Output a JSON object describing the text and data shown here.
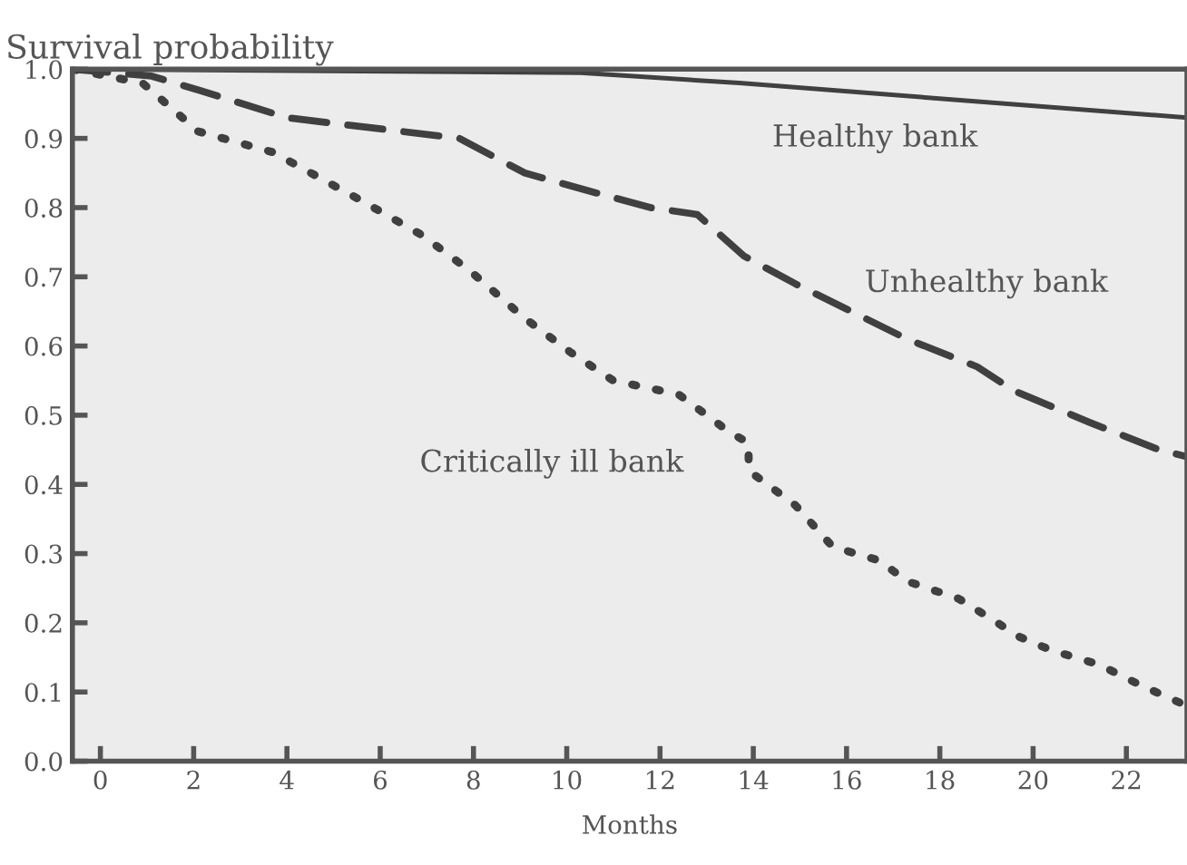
{
  "chart_data": {
    "type": "line",
    "xlabel": "Months",
    "ylabel": "Survival probability",
    "xlim": [
      -0.6,
      23.3
    ],
    "ylim": [
      0,
      1.0
    ],
    "xticks": [
      0,
      2,
      4,
      6,
      8,
      10,
      12,
      14,
      16,
      18,
      20,
      22
    ],
    "yticks": [
      {
        "value": 0,
        "label": "0.0"
      },
      {
        "value": 0.1,
        "label": "0.1"
      },
      {
        "value": 0.2,
        "label": "0.2"
      },
      {
        "value": 0.3,
        "label": "0.3"
      },
      {
        "value": 0.4,
        "label": "0.4"
      },
      {
        "value": 0.5,
        "label": "0.5"
      },
      {
        "value": 0.6,
        "label": "0.6"
      },
      {
        "value": 0.7,
        "label": "0.7"
      },
      {
        "value": 0.8,
        "label": "0.8"
      },
      {
        "value": 0.9,
        "label": "0.9"
      },
      {
        "value": 1.0,
        "label": "1.0"
      }
    ],
    "grid": false,
    "series": [
      {
        "name": "Healthy bank",
        "color": "#404040",
        "line_style": "solid",
        "x": [
          -0.6,
          10.3,
          13.7,
          23.3
        ],
        "values": [
          1.0,
          0.995,
          0.98,
          0.93
        ]
      },
      {
        "name": "Unhealthy bank",
        "color": "#404040",
        "line_style": "dashed",
        "x": [
          -0.6,
          1.1,
          2.1,
          4.0,
          7.7,
          9.1,
          10.7,
          11.8,
          12.8,
          13.8,
          14.9,
          16.1,
          17.3,
          18.8,
          19.6,
          21.2,
          22.7,
          23.3
        ],
        "values": [
          1.0,
          0.99,
          0.97,
          0.93,
          0.9,
          0.85,
          0.82,
          0.8,
          0.79,
          0.73,
          0.69,
          0.65,
          0.61,
          0.57,
          0.535,
          0.49,
          0.45,
          0.44
        ]
      },
      {
        "name": "Critically ill bank",
        "color": "#404040",
        "line_style": "dotted",
        "x": [
          -0.6,
          0.9,
          2.1,
          3.7,
          5.6,
          6.9,
          7.9,
          9.1,
          10.1,
          11.0,
          12.4,
          13.5,
          13.9,
          13.9,
          14.9,
          15.7,
          16.7,
          17.3,
          18.4,
          19.0,
          19.7,
          20.4,
          21.4,
          22.3,
          23.3
        ],
        "values": [
          1.0,
          0.98,
          0.91,
          0.88,
          0.81,
          0.76,
          0.71,
          0.64,
          0.59,
          0.55,
          0.53,
          0.475,
          0.46,
          0.42,
          0.37,
          0.31,
          0.29,
          0.26,
          0.235,
          0.21,
          0.18,
          0.16,
          0.14,
          0.11,
          0.08
        ]
      }
    ]
  }
}
